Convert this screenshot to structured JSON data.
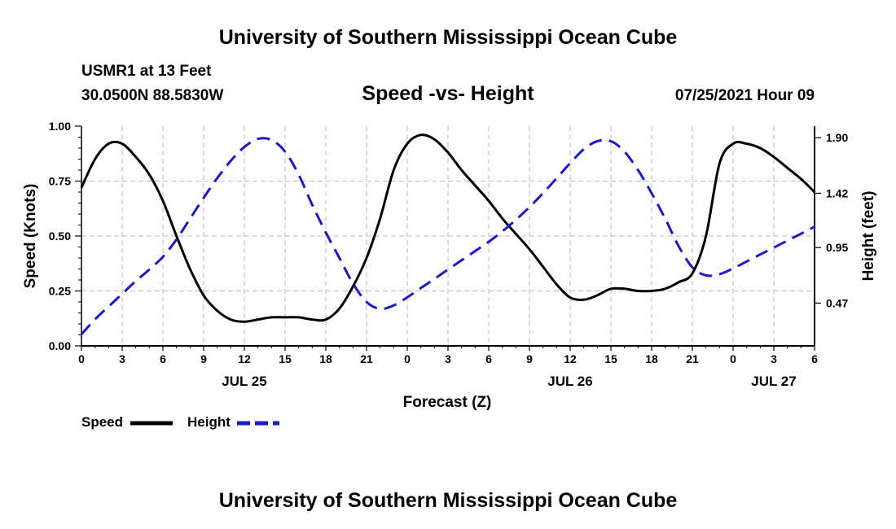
{
  "header": {
    "title": "University of Southern Mississippi Ocean Cube",
    "station": "USMR1 at 13 Feet",
    "coords": "30.0500N  88.5830W",
    "plot_title": "Speed -vs- Height",
    "datetime": "07/25/2021 Hour 09"
  },
  "footer": {
    "title": "University of Southern Mississippi Ocean Cube"
  },
  "chart_data": {
    "type": "line",
    "title": "Speed -vs- Height",
    "xlabel": "Forecast (Z)",
    "ylabel_left": "Speed (Knots)",
    "ylabel_right": "Height (feet)",
    "x_range_hours": [
      0,
      54
    ],
    "x_ticks": [
      0,
      3,
      6,
      9,
      12,
      15,
      18,
      21,
      24,
      27,
      30,
      33,
      36,
      39,
      42,
      45,
      48,
      51,
      54
    ],
    "x_tick_labels": [
      "0",
      "3",
      "6",
      "9",
      "12",
      "15",
      "18",
      "21",
      "0",
      "3",
      "6",
      "9",
      "12",
      "15",
      "18",
      "21",
      "0",
      "3",
      "6"
    ],
    "date_labels": [
      {
        "label": "JUL 25",
        "hour": 12
      },
      {
        "label": "JUL 26",
        "hour": 36
      },
      {
        "label": "JUL 27",
        "hour": 51
      }
    ],
    "y_left": {
      "range": [
        0,
        1
      ],
      "ticks": [
        0,
        0.25,
        0.5,
        0.75,
        1.0
      ],
      "tick_labels": [
        "0.00",
        "0.25",
        "0.50",
        "0.75",
        "1.00"
      ]
    },
    "y_right": {
      "range": [
        0.1,
        2.0
      ],
      "ticks": [
        0.47,
        0.95,
        1.42,
        1.9
      ],
      "tick_labels": [
        "0.47",
        "0.95",
        "1.42",
        "1.90"
      ]
    },
    "grid": true,
    "legend": {
      "position": "bottom-left",
      "entries": [
        "Speed",
        "Height"
      ]
    },
    "series": [
      {
        "name": "Speed",
        "axis": "left",
        "color": "#000000",
        "dash": "solid",
        "x": [
          0,
          1,
          2,
          3,
          4,
          5,
          6,
          7,
          8,
          9,
          10,
          11,
          12,
          13,
          14,
          15,
          16,
          17,
          18,
          19,
          20,
          21,
          22,
          23,
          24,
          25,
          26,
          27,
          28,
          29,
          30,
          31,
          32,
          33,
          34,
          35,
          36,
          37,
          38,
          39,
          40,
          41,
          42,
          43,
          44,
          45,
          46,
          47,
          48,
          49,
          50,
          51,
          52,
          53,
          54
        ],
        "values": [
          0.72,
          0.85,
          0.92,
          0.92,
          0.86,
          0.78,
          0.66,
          0.5,
          0.35,
          0.23,
          0.16,
          0.12,
          0.11,
          0.12,
          0.13,
          0.13,
          0.13,
          0.12,
          0.12,
          0.17,
          0.27,
          0.4,
          0.58,
          0.8,
          0.92,
          0.96,
          0.94,
          0.88,
          0.8,
          0.73,
          0.66,
          0.58,
          0.51,
          0.44,
          0.36,
          0.28,
          0.22,
          0.21,
          0.23,
          0.26,
          0.26,
          0.25,
          0.25,
          0.26,
          0.29,
          0.33,
          0.5,
          0.83,
          0.92,
          0.92,
          0.9,
          0.86,
          0.81,
          0.76,
          0.7
        ]
      },
      {
        "name": "Height",
        "axis": "right",
        "color": "#1a1acc",
        "dash": "dashed",
        "x": [
          0,
          1,
          2,
          3,
          4,
          5,
          6,
          7,
          8,
          9,
          10,
          11,
          12,
          13,
          14,
          15,
          16,
          17,
          18,
          19,
          20,
          21,
          22,
          23,
          24,
          25,
          26,
          27,
          28,
          29,
          30,
          31,
          32,
          33,
          34,
          35,
          36,
          37,
          38,
          39,
          40,
          41,
          42,
          43,
          44,
          45,
          46,
          47,
          48,
          49,
          50,
          51,
          52,
          53,
          54
        ],
        "values": [
          0.2,
          0.33,
          0.44,
          0.55,
          0.66,
          0.76,
          0.87,
          1.02,
          1.2,
          1.38,
          1.55,
          1.7,
          1.82,
          1.89,
          1.88,
          1.78,
          1.58,
          1.32,
          1.08,
          0.86,
          0.64,
          0.48,
          0.42,
          0.45,
          0.52,
          0.6,
          0.68,
          0.76,
          0.84,
          0.92,
          1.0,
          1.09,
          1.19,
          1.3,
          1.42,
          1.55,
          1.68,
          1.8,
          1.87,
          1.87,
          1.78,
          1.62,
          1.42,
          1.2,
          0.96,
          0.78,
          0.71,
          0.72,
          0.77,
          0.83,
          0.89,
          0.95,
          1.01,
          1.07,
          1.13
        ]
      }
    ]
  }
}
